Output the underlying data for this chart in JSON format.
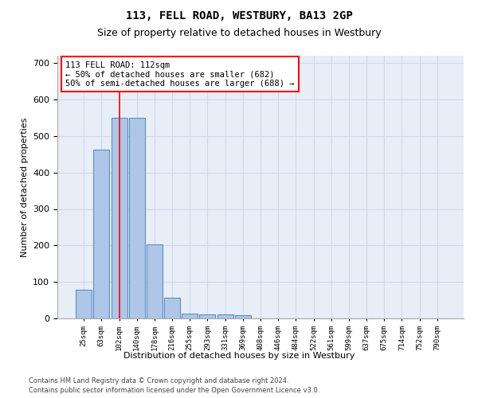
{
  "title": "113, FELL ROAD, WESTBURY, BA13 2GP",
  "subtitle": "Size of property relative to detached houses in Westbury",
  "xlabel": "Distribution of detached houses by size in Westbury",
  "ylabel": "Number of detached properties",
  "bar_values": [
    78,
    463,
    550,
    550,
    203,
    57,
    14,
    10,
    10,
    8,
    0,
    0,
    0,
    0,
    0,
    0,
    0,
    0,
    0,
    0,
    0
  ],
  "bar_labels": [
    "25sqm",
    "63sqm",
    "102sqm",
    "140sqm",
    "178sqm",
    "216sqm",
    "255sqm",
    "293sqm",
    "331sqm",
    "369sqm",
    "408sqm",
    "446sqm",
    "484sqm",
    "522sqm",
    "561sqm",
    "599sqm",
    "637sqm",
    "675sqm",
    "714sqm",
    "752sqm",
    "790sqm"
  ],
  "bar_color": "#aec6e8",
  "bar_edge_color": "#5a8fc2",
  "grid_color": "#d0d8e8",
  "background_color": "#e8eef8",
  "annotation_text": "113 FELL ROAD: 112sqm\n← 50% of detached houses are smaller (682)\n50% of semi-detached houses are larger (688) →",
  "annotation_box_color": "white",
  "annotation_box_edge": "red",
  "vline_x": 2,
  "vline_color": "red",
  "ylim": [
    0,
    720
  ],
  "yticks": [
    0,
    100,
    200,
    300,
    400,
    500,
    600,
    700
  ],
  "footer_line1": "Contains HM Land Registry data © Crown copyright and database right 2024.",
  "footer_line2": "Contains public sector information licensed under the Open Government Licence v3.0."
}
